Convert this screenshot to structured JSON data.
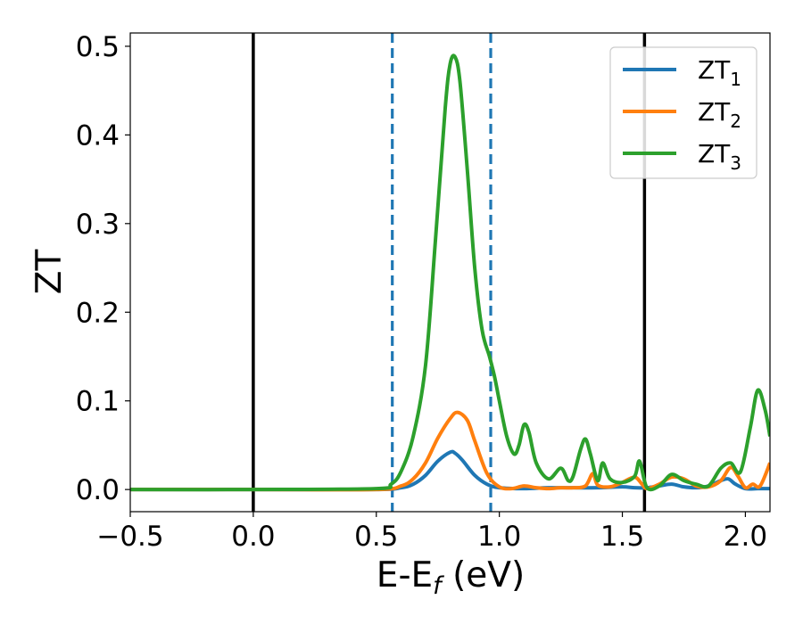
{
  "chart_data": {
    "type": "line",
    "title": "",
    "xlabel": "E-E",
    "xlabel_sub": "f",
    "xlabel_unit": " (eV)",
    "ylabel": "ZT",
    "xlim": [
      -0.5,
      2.1
    ],
    "ylim": [
      -0.025,
      0.515
    ],
    "grid": false,
    "legend_position": "top-right",
    "xticks": [
      {
        "value": -0.5,
        "label": "−0.5"
      },
      {
        "value": 0.0,
        "label": "0.0"
      },
      {
        "value": 0.5,
        "label": "0.5"
      },
      {
        "value": 1.0,
        "label": "1.0"
      },
      {
        "value": 1.5,
        "label": "1.5"
      },
      {
        "value": 2.0,
        "label": "2.0"
      }
    ],
    "yticks": [
      {
        "value": 0.0,
        "label": "0.0"
      },
      {
        "value": 0.1,
        "label": "0.1"
      },
      {
        "value": 0.2,
        "label": "0.2"
      },
      {
        "value": 0.3,
        "label": "0.3"
      },
      {
        "value": 0.4,
        "label": "0.4"
      },
      {
        "value": 0.5,
        "label": "0.5"
      }
    ],
    "vlines": [
      {
        "x": 0.0,
        "color": "#000000",
        "style": "solid"
      },
      {
        "x": 1.59,
        "color": "#000000",
        "style": "solid"
      },
      {
        "x": 0.565,
        "color": "#1f77b4",
        "style": "dashed"
      },
      {
        "x": 0.965,
        "color": "#1f77b4",
        "style": "dashed"
      }
    ],
    "series": [
      {
        "name": "ZT",
        "name_sub": "1",
        "color": "#1f77b4",
        "x": [
          -0.5,
          0.0,
          0.5,
          0.6,
          0.65,
          0.7,
          0.75,
          0.8,
          0.82,
          0.85,
          0.9,
          0.95,
          1.0,
          1.1,
          1.2,
          1.3,
          1.4,
          1.5,
          1.55,
          1.6,
          1.65,
          1.7,
          1.75,
          1.8,
          1.85,
          1.9,
          1.93,
          1.96,
          2.0,
          2.05,
          2.1
        ],
        "y": [
          0.0,
          0.0,
          0.0,
          0.002,
          0.006,
          0.016,
          0.032,
          0.042,
          0.041,
          0.033,
          0.016,
          0.006,
          0.002,
          0.001,
          0.002,
          0.002,
          0.002,
          0.003,
          0.002,
          0.002,
          0.004,
          0.006,
          0.003,
          0.002,
          0.004,
          0.01,
          0.012,
          0.006,
          0.001,
          0.001,
          0.001
        ]
      },
      {
        "name": "ZT",
        "name_sub": "2",
        "color": "#ff7f0e",
        "x": [
          -0.5,
          0.0,
          0.5,
          0.6,
          0.65,
          0.7,
          0.75,
          0.8,
          0.83,
          0.87,
          0.9,
          0.95,
          1.0,
          1.05,
          1.1,
          1.15,
          1.2,
          1.25,
          1.3,
          1.35,
          1.38,
          1.4,
          1.45,
          1.5,
          1.55,
          1.58,
          1.6,
          1.65,
          1.7,
          1.75,
          1.8,
          1.85,
          1.9,
          1.94,
          1.97,
          2.0,
          2.03,
          2.06,
          2.1
        ],
        "y": [
          0.0,
          0.0,
          0.0,
          0.004,
          0.012,
          0.03,
          0.058,
          0.08,
          0.087,
          0.078,
          0.055,
          0.018,
          0.003,
          0.001,
          0.004,
          0.002,
          0.001,
          0.002,
          0.002,
          0.004,
          0.018,
          0.005,
          0.003,
          0.008,
          0.014,
          0.006,
          0.001,
          0.006,
          0.014,
          0.012,
          0.004,
          0.003,
          0.01,
          0.025,
          0.015,
          0.002,
          0.006,
          0.004,
          0.03
        ]
      },
      {
        "name": "ZT",
        "name_sub": "3",
        "color": "#2ca02c",
        "x": [
          -0.5,
          0.0,
          0.5,
          0.56,
          0.6,
          0.65,
          0.7,
          0.74,
          0.78,
          0.8,
          0.82,
          0.84,
          0.87,
          0.9,
          0.93,
          0.96,
          0.98,
          1.0,
          1.03,
          1.06,
          1.08,
          1.1,
          1.12,
          1.15,
          1.2,
          1.25,
          1.28,
          1.3,
          1.33,
          1.35,
          1.37,
          1.4,
          1.42,
          1.45,
          1.5,
          1.55,
          1.57,
          1.6,
          1.65,
          1.7,
          1.75,
          1.8,
          1.85,
          1.9,
          1.94,
          1.98,
          2.02,
          2.05,
          2.08,
          2.1
        ],
        "y": [
          0.0,
          0.0,
          0.001,
          0.006,
          0.02,
          0.06,
          0.14,
          0.28,
          0.43,
          0.48,
          0.488,
          0.46,
          0.36,
          0.25,
          0.18,
          0.15,
          0.128,
          0.1,
          0.06,
          0.04,
          0.05,
          0.073,
          0.065,
          0.03,
          0.012,
          0.024,
          0.01,
          0.015,
          0.045,
          0.057,
          0.04,
          0.01,
          0.03,
          0.012,
          0.008,
          0.015,
          0.032,
          0.002,
          0.004,
          0.017,
          0.01,
          0.006,
          0.004,
          0.024,
          0.03,
          0.02,
          0.07,
          0.112,
          0.09,
          0.06
        ]
      }
    ]
  }
}
